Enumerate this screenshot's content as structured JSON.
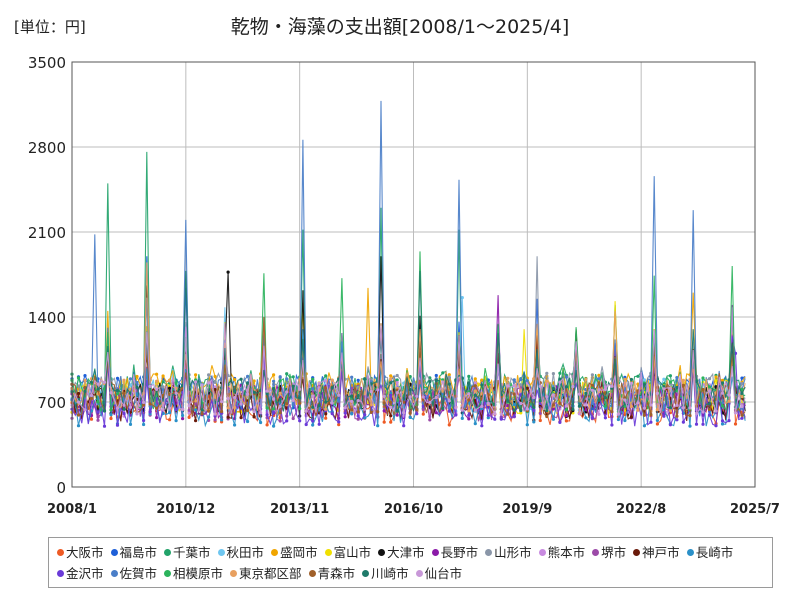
{
  "chart_data": {
    "type": "line",
    "title": "乾物・海藻の支出額[2008/1～2025/4]",
    "unit_label": "[単位：円]",
    "xlabel": "",
    "ylabel": "",
    "x_range": [
      "2008-01",
      "2025-07"
    ],
    "x_ticks": [
      "2008/1",
      "2010/12",
      "2013/11",
      "2016/10",
      "2019/9",
      "2022/8",
      "2025/7"
    ],
    "ylim": [
      0,
      3500
    ],
    "y_ticks": [
      0,
      700,
      1400,
      2100,
      2800,
      3500
    ],
    "grid": true,
    "legend_position": "bottom",
    "data_start": "2008-01",
    "data_end": "2025-04",
    "series": [
      {
        "name": "大阪市",
        "color": "#ee5a24",
        "typical": 650,
        "peaks": [
          [
            "2024-12",
            1370
          ],
          [
            "2012-12",
            1250
          ]
        ]
      },
      {
        "name": "福島市",
        "color": "#1e5fd8",
        "typical": 780,
        "peaks": [
          [
            "2009-12",
            1900
          ],
          [
            "2010-12",
            1640
          ],
          [
            "2019-12",
            1550
          ]
        ]
      },
      {
        "name": "千葉市",
        "color": "#22a36a",
        "typical": 800,
        "peaks": [
          [
            "2008-12",
            2500
          ],
          [
            "2009-12",
            2760
          ],
          [
            "2013-12",
            2120
          ],
          [
            "2015-12",
            2300
          ],
          [
            "2017-12",
            2120
          ],
          [
            "2021-12",
            1500
          ]
        ]
      },
      {
        "name": "秋田市",
        "color": "#6ec6f0",
        "typical": 760,
        "peaks": [
          [
            "2018-01",
            1560
          ],
          [
            "2011-12",
            1480
          ]
        ]
      },
      {
        "name": "盛岡市",
        "color": "#f0a500",
        "typical": 800,
        "peaks": [
          [
            "2015-08",
            1640
          ],
          [
            "2023-12",
            1600
          ],
          [
            "2008-12",
            1450
          ]
        ]
      },
      {
        "name": "富山市",
        "color": "#f0e000",
        "typical": 740,
        "peaks": [
          [
            "2021-12",
            1530
          ],
          [
            "2013-12",
            1520
          ],
          [
            "2019-08",
            1300
          ]
        ]
      },
      {
        "name": "大津市",
        "color": "#111111",
        "typical": 720,
        "peaks": [
          [
            "2009-12",
            1660
          ],
          [
            "2012-01",
            1770
          ],
          [
            "2013-12",
            1620
          ],
          [
            "2015-12",
            1900
          ],
          [
            "2016-12",
            1410
          ]
        ]
      },
      {
        "name": "長野市",
        "color": "#8b1aa8",
        "typical": 700,
        "peaks": [
          [
            "2018-12",
            1580
          ],
          [
            "2024-12",
            1500
          ]
        ]
      },
      {
        "name": "山形市",
        "color": "#8a96a8",
        "typical": 800,
        "peaks": [
          [
            "2019-12",
            1900
          ],
          [
            "2009-12",
            1560
          ]
        ]
      },
      {
        "name": "熊本市",
        "color": "#c88ae0",
        "typical": 720,
        "peaks": [
          [
            "2024-12",
            1480
          ],
          [
            "2010-12",
            1320
          ]
        ]
      },
      {
        "name": "堺市",
        "color": "#9c4aa8",
        "typical": 680,
        "peaks": [
          [
            "2012-12",
            1300
          ],
          [
            "2018-12",
            1300
          ]
        ]
      },
      {
        "name": "神戸市",
        "color": "#6a1a0a",
        "typical": 680,
        "peaks": [
          [
            "2016-12",
            1200
          ],
          [
            "2012-12",
            1250
          ]
        ]
      },
      {
        "name": "長崎市",
        "color": "#2a90c8",
        "typical": 640,
        "peaks": [
          [
            "2013-12",
            1300
          ],
          [
            "2022-12",
            1250
          ]
        ]
      },
      {
        "name": "金沢市",
        "color": "#6a3ad8",
        "typical": 640,
        "peaks": [
          [
            "2018-12",
            1250
          ],
          [
            "2025-01",
            1100
          ]
        ]
      },
      {
        "name": "佐賀市",
        "color": "#4a7ec8",
        "typical": 780,
        "peaks": [
          [
            "2013-12",
            2860
          ],
          [
            "2015-12",
            3180
          ],
          [
            "2010-12",
            2200
          ],
          [
            "2017-12",
            2530
          ],
          [
            "2022-12",
            2560
          ],
          [
            "2023-12",
            2280
          ],
          [
            "2008-08",
            2080
          ]
        ]
      },
      {
        "name": "相模原市",
        "color": "#2bb35c",
        "typical": 760,
        "peaks": [
          [
            "2016-12",
            1940
          ],
          [
            "2012-12",
            1760
          ],
          [
            "2014-12",
            1720
          ],
          [
            "2024-12",
            1820
          ],
          [
            "2022-12",
            1740
          ]
        ]
      },
      {
        "name": "東京都区部",
        "color": "#e8a060",
        "typical": 760,
        "peaks": [
          [
            "2009-12",
            1850
          ],
          [
            "2021-12",
            1450
          ]
        ]
      },
      {
        "name": "青森市",
        "color": "#a0602a",
        "typical": 720,
        "peaks": [
          [
            "2012-12",
            1400
          ],
          [
            "2015-12",
            1350
          ]
        ]
      },
      {
        "name": "川崎市",
        "color": "#1e7a6a",
        "typical": 760,
        "peaks": [
          [
            "2010-12",
            1780
          ],
          [
            "2016-12",
            1780
          ],
          [
            "2023-12",
            1300
          ]
        ]
      },
      {
        "name": "仙台市",
        "color": "#c898d8",
        "typical": 740,
        "peaks": [
          [
            "2011-12",
            1350
          ],
          [
            "2020-12",
            1200
          ]
        ]
      }
    ]
  }
}
